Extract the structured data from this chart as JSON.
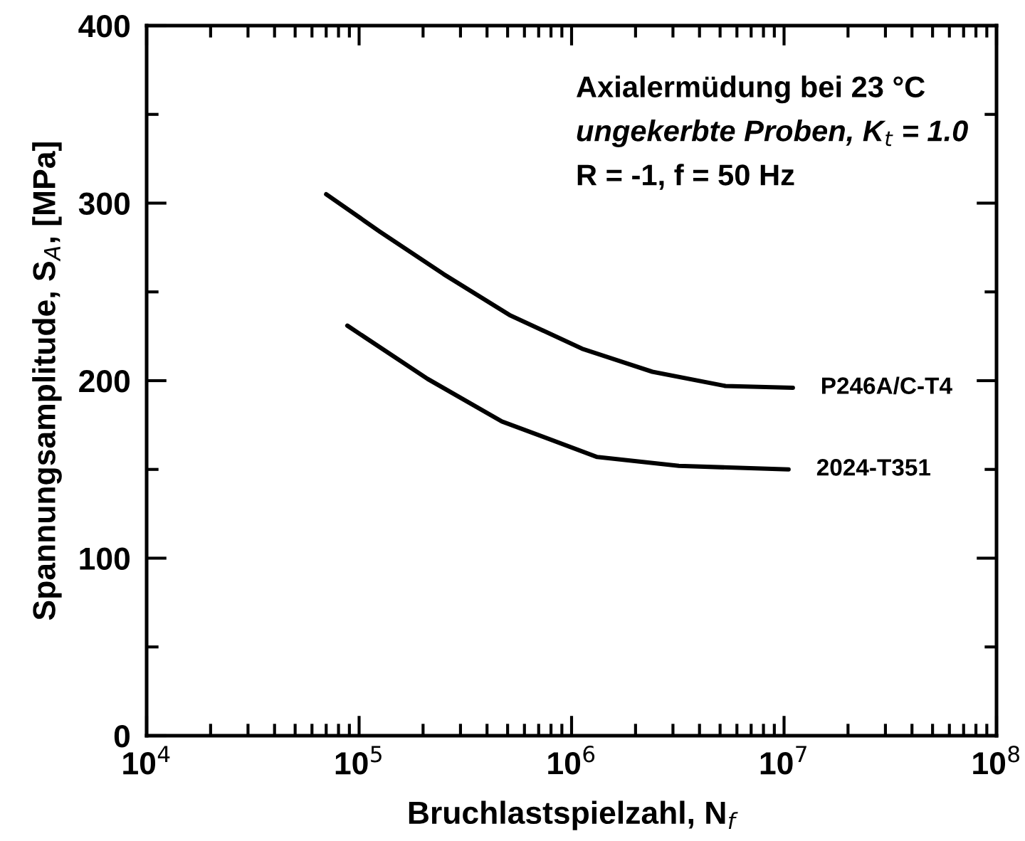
{
  "chart_data": {
    "type": "line",
    "xlabel": "Bruchlastspielzahl, N$_{f}$",
    "ylabel": "Spannungsamplitude, S$_{A}$, [MPa]",
    "annotations": [
      "Axialermüdung bei 23 °C",
      "ungekerbte Proben, K$_{t}$ = 1.0",
      "R = -1, f = 50 Hz"
    ],
    "series": [
      {
        "name": "P246A/C-T4",
        "color": "#000000",
        "x": [
          70000,
          125000,
          250000,
          510000,
          1120000,
          2400000,
          5300000,
          11000000
        ],
        "values": [
          305,
          284,
          260,
          237,
          218,
          205,
          197,
          196
        ]
      },
      {
        "name": "2024-T351",
        "color": "#000000",
        "x": [
          88000,
          210000,
          470000,
          1320000,
          3200000,
          10500000
        ],
        "values": [
          231,
          201,
          177,
          157,
          152,
          150
        ]
      }
    ],
    "log": "x",
    "xlim": [
      10000,
      100000000
    ],
    "xticks": [
      {
        "value": 10000,
        "label": "10$^{4}$"
      },
      {
        "value": 100000,
        "label": "10$^{5}$"
      },
      {
        "value": 1000000,
        "label": "10$^{6}$"
      },
      {
        "value": 10000000,
        "label": "10$^{7}$"
      },
      {
        "value": 100000000,
        "label": "10$^{8}$"
      }
    ],
    "ylim": [
      0,
      400
    ],
    "yticks": [
      0,
      {
        "value": 50,
        "label": null
      },
      100,
      {
        "value": 150,
        "label": null
      },
      200,
      {
        "value": 250,
        "label": null
      },
      300,
      {
        "value": 350,
        "label": null
      },
      400
    ],
    "grid": false,
    "legend": "right",
    "marker": "none",
    "line_style": "solid"
  }
}
